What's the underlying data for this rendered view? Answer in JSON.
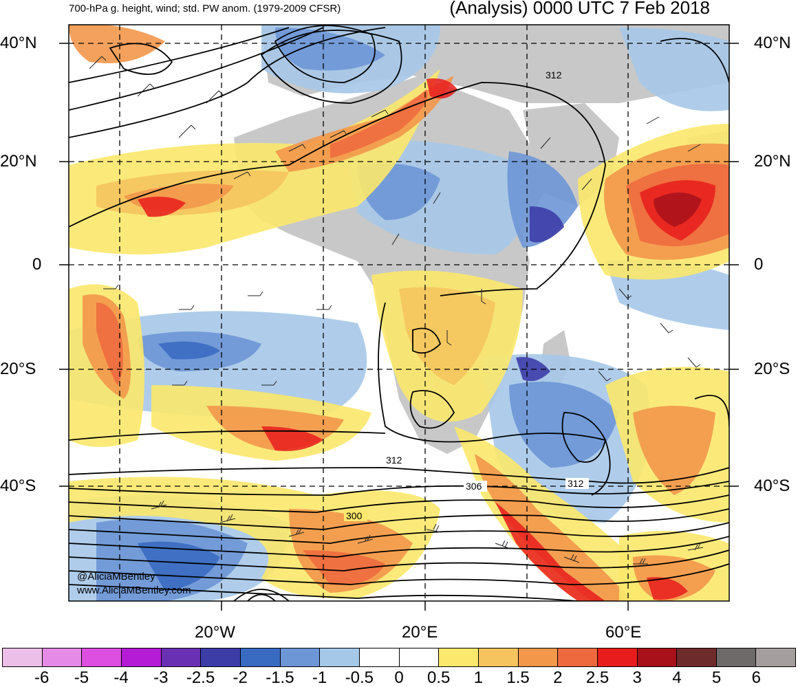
{
  "header": {
    "subtitle": "700-hPa g. height, wind; std. PW anom. (1979-2009 CFSR)",
    "title": "(Analysis) 0000 UTC 7 Feb 2018"
  },
  "axes": {
    "lat_left": [
      "40°N",
      "20°N",
      "0",
      "20°S",
      "40°S"
    ],
    "lat_right": [
      "40°N",
      "20°N",
      "0",
      "20°S",
      "40°S"
    ],
    "lon": [
      "20°W",
      "20°E",
      "60°E"
    ]
  },
  "contour_labels": [
    "312",
    "312",
    "306",
    "312",
    "300"
  ],
  "credit": {
    "handle": "@AliciaMBentley",
    "url": "www.AliciaMBentley.com"
  },
  "colorbar": {
    "ticks": [
      "-6",
      "-5",
      "-4",
      "-3",
      "-2.5",
      "-2",
      "-1.5",
      "-1",
      "-0.5",
      "0",
      "0.5",
      "1",
      "1.5",
      "2",
      "2.5",
      "3",
      "4",
      "5",
      "6"
    ],
    "colors": [
      "#ebbfe8",
      "#e58ae6",
      "#dc4fe0",
      "#b41cd6",
      "#6a30b4",
      "#3d3da8",
      "#3a6bc2",
      "#6d96d6",
      "#a6c8e8",
      "#ffffff",
      "#ffffff",
      "#fbe86c",
      "#f5c45e",
      "#f3974b",
      "#ee6a3e",
      "#e81c1c",
      "#a8101a",
      "#6e2b2b",
      "#6e6a6a",
      "#a59e9e"
    ]
  }
}
